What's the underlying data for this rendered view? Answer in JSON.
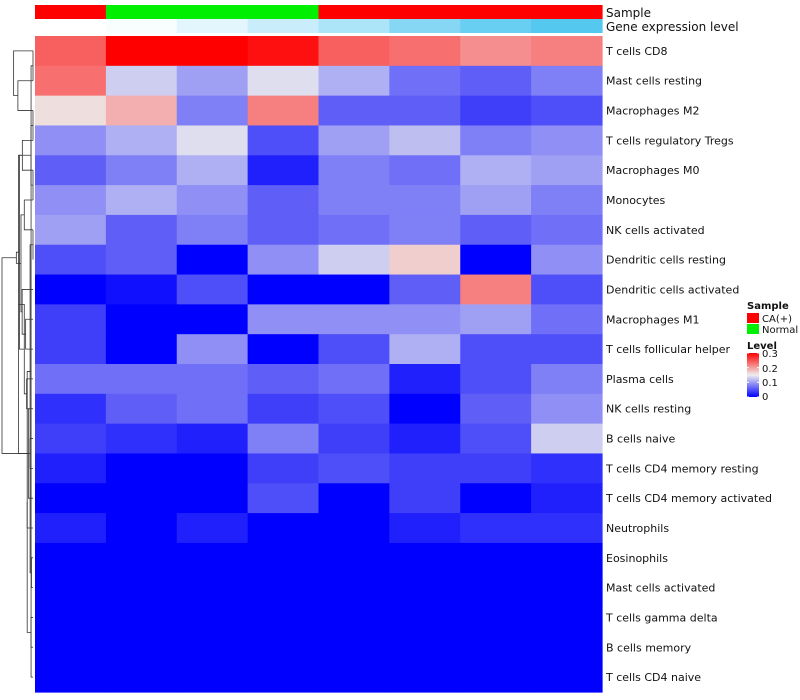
{
  "chart_data": {
    "type": "heatmap",
    "title": "",
    "annotation_labels": {
      "sample": "Sample",
      "expression": "Gene expression level"
    },
    "columns": [
      {
        "sample": "CA(+)",
        "expression": 0.3
      },
      {
        "sample": "Normal",
        "expression": 0.29
      },
      {
        "sample": "Normal",
        "expression": 0.26
      },
      {
        "sample": "Normal",
        "expression": 0.22
      },
      {
        "sample": "CA(+)",
        "expression": 0.18
      },
      {
        "sample": "CA(+)",
        "expression": 0.12
      },
      {
        "sample": "CA(+)",
        "expression": 0.08
      },
      {
        "sample": "CA(+)",
        "expression": 0.05
      }
    ],
    "rows": [
      "T cells CD8",
      "Mast cells resting",
      "Macrophages M2",
      "T cells regulatory  Tregs",
      "Macrophages M0",
      "Monocytes",
      "NK cells activated",
      "Dendritic cells resting",
      "Dendritic cells activated",
      "Macrophages M1",
      "T cells follicular helper",
      "Plasma cells",
      "NK cells resting",
      "B cells naive",
      "T cells CD4 memory resting",
      "T cells CD4 memory activated",
      "Neutrophils",
      "Eosinophils",
      "Mast cells activated",
      "T cells gamma delta",
      "B cells memory",
      "T cells CD4 naive"
    ],
    "values": [
      [
        0.24,
        0.3,
        0.3,
        0.29,
        0.24,
        0.23,
        0.21,
        0.22
      ],
      [
        0.23,
        0.13,
        0.1,
        0.14,
        0.11,
        0.07,
        0.06,
        0.08
      ],
      [
        0.16,
        0.19,
        0.08,
        0.22,
        0.06,
        0.06,
        0.04,
        0.05
      ],
      [
        0.09,
        0.11,
        0.14,
        0.05,
        0.1,
        0.12,
        0.08,
        0.09
      ],
      [
        0.06,
        0.08,
        0.11,
        0.02,
        0.08,
        0.07,
        0.11,
        0.1
      ],
      [
        0.09,
        0.11,
        0.09,
        0.06,
        0.08,
        0.08,
        0.1,
        0.08
      ],
      [
        0.1,
        0.06,
        0.08,
        0.06,
        0.07,
        0.08,
        0.06,
        0.07
      ],
      [
        0.05,
        0.06,
        0.0,
        0.09,
        0.13,
        0.17,
        0.0,
        0.09
      ],
      [
        0.0,
        0.01,
        0.05,
        0.0,
        0.0,
        0.06,
        0.22,
        0.05
      ],
      [
        0.04,
        0.0,
        0.0,
        0.09,
        0.09,
        0.09,
        0.1,
        0.07
      ],
      [
        0.04,
        0.0,
        0.09,
        0.0,
        0.05,
        0.11,
        0.05,
        0.05
      ],
      [
        0.07,
        0.07,
        0.07,
        0.06,
        0.07,
        0.02,
        0.05,
        0.08
      ],
      [
        0.03,
        0.06,
        0.07,
        0.04,
        0.05,
        0.0,
        0.06,
        0.09
      ],
      [
        0.04,
        0.03,
        0.02,
        0.08,
        0.04,
        0.02,
        0.05,
        0.13
      ],
      [
        0.02,
        0.0,
        0.0,
        0.04,
        0.05,
        0.04,
        0.04,
        0.03
      ],
      [
        0.0,
        0.0,
        0.0,
        0.05,
        0.0,
        0.04,
        0.0,
        0.02
      ],
      [
        0.02,
        0.0,
        0.02,
        0.0,
        0.0,
        0.02,
        0.03,
        0.03
      ],
      [
        0.0,
        0.0,
        0.0,
        0.0,
        0.0,
        0.0,
        0.0,
        0.0
      ],
      [
        0.0,
        0.0,
        0.0,
        0.0,
        0.0,
        0.0,
        0.0,
        0.0
      ],
      [
        0.0,
        0.0,
        0.0,
        0.0,
        0.0,
        0.0,
        0.0,
        0.0
      ],
      [
        0.0,
        0.0,
        0.0,
        0.0,
        0.0,
        0.0,
        0.0,
        0.0
      ],
      [
        0.0,
        0.0,
        0.0,
        0.0,
        0.0,
        0.0,
        0.0,
        0.0
      ]
    ],
    "color_scale": {
      "low": "#0000FF",
      "mid": "#EEEEEE",
      "high": "#FF0000",
      "min": 0,
      "mid_value": 0.15,
      "max": 0.3
    },
    "annotation_color_scale": {
      "low": "#55C8F0",
      "high": "#FFFFFF",
      "min": 0.05,
      "max": 0.3
    },
    "legend": {
      "sample_title": "Sample",
      "sample_items": [
        {
          "label": "CA(+)",
          "color": "#FF0000"
        },
        {
          "label": "Normal",
          "color": "#00EE00"
        }
      ],
      "level_title": "Level",
      "level_ticks": [
        "0.3",
        "0.2",
        "0.1",
        "0"
      ],
      "level_tick_values": [
        0.3,
        0.2,
        0.1,
        0
      ]
    },
    "dendrogram": [
      [
        0.0,
        0,
        1
      ],
      [
        0.0,
        2,
        3
      ],
      [
        0.0,
        4,
        5
      ],
      [
        0.0,
        6,
        7
      ],
      [
        0.08,
        17,
        18
      ],
      [
        0.1,
        19,
        20
      ],
      [
        0.1,
        21,
        22
      ],
      [
        0.1,
        23,
        24
      ],
      [
        0.15,
        25,
        26
      ],
      [
        0.3,
        27,
        28
      ],
      [
        0.16,
        13,
        14
      ],
      [
        0.24,
        30,
        15
      ],
      [
        0.3,
        31,
        16
      ],
      [
        0.75,
        29,
        32
      ],
      [
        0.33,
        11,
        12
      ],
      [
        0.38,
        9,
        10
      ],
      [
        0.45,
        35,
        36
      ],
      [
        0.56,
        8,
        37
      ],
      [
        0.45,
        6,
        5
      ],
      [
        0.55,
        4,
        3
      ],
      [
        0.62,
        39,
        40
      ],
      [
        0.7,
        41,
        38
      ],
      [
        0.78,
        2,
        1
      ],
      [
        0.86,
        43,
        42
      ],
      [
        1.0,
        0,
        44
      ],
      [
        1.6,
        45,
        33
      ]
    ]
  }
}
